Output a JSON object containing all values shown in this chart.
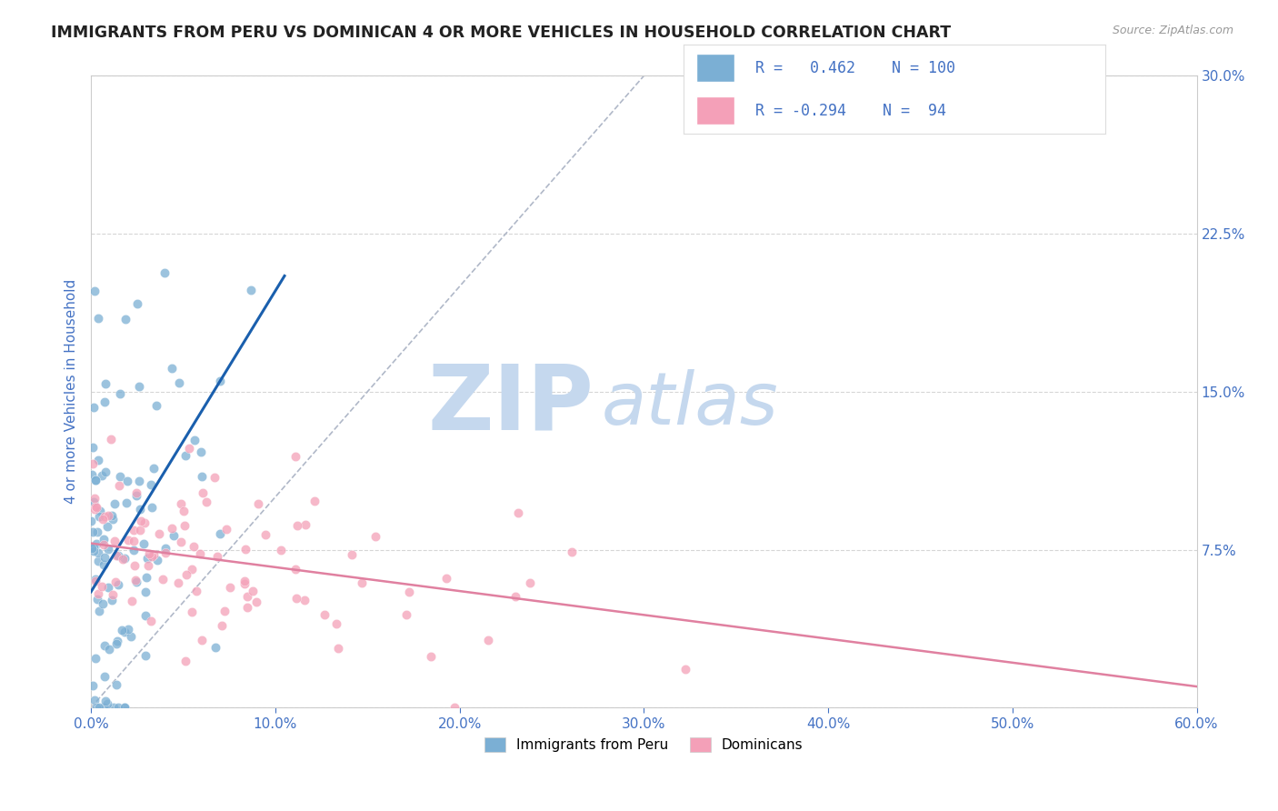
{
  "title": "IMMIGRANTS FROM PERU VS DOMINICAN 4 OR MORE VEHICLES IN HOUSEHOLD CORRELATION CHART",
  "source": "Source: ZipAtlas.com",
  "r_peru": 0.462,
  "n_peru": 100,
  "r_dominican": -0.294,
  "n_dominican": 94,
  "legend_label_peru": "Immigrants from Peru",
  "legend_label_dominican": "Dominicans",
  "blue_color": "#7bafd4",
  "pink_color": "#f4a0b8",
  "blue_line_color": "#1a5fad",
  "pink_line_color": "#e080a0",
  "xlim": [
    0.0,
    0.6
  ],
  "ylim": [
    0.0,
    0.3
  ],
  "background_color": "#ffffff",
  "axis_label_color": "#4472c4",
  "legend_r_color": "#4472c4",
  "watermark_zip_color": "#c5d8ee",
  "watermark_atlas_color": "#c5d8ee"
}
